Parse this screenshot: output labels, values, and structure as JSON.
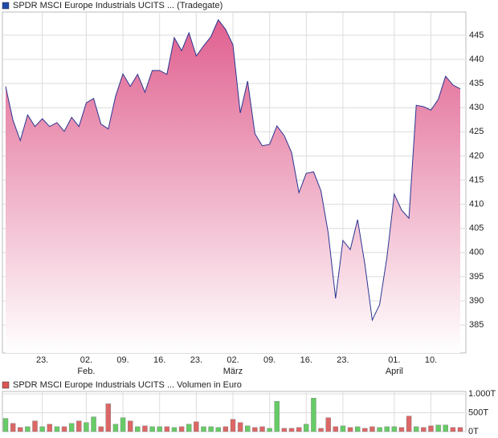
{
  "chart_data": [
    {
      "type": "area",
      "title": "SPDR MSCI Europe Industrials UCITS ... (Tradegate)",
      "legend_color": "#1f4aa8",
      "color": "#2b3590",
      "fill_color": "#e0608f",
      "categories": [
        null,
        null,
        null,
        null,
        null,
        "23.",
        null,
        null,
        null,
        null,
        null,
        "02.",
        null,
        null,
        null,
        null,
        "09.",
        null,
        null,
        null,
        null,
        "16.",
        null,
        null,
        null,
        null,
        "23.",
        null,
        null,
        null,
        null,
        "02.",
        null,
        null,
        null,
        null,
        "09.",
        null,
        null,
        null,
        null,
        "16.",
        null,
        null,
        null,
        null,
        "23.",
        null,
        null,
        null,
        null,
        null,
        null,
        "01.",
        null,
        null,
        null,
        null,
        "10.",
        null,
        null,
        null,
        null
      ],
      "months": [
        null,
        null,
        null,
        null,
        null,
        null,
        null,
        null,
        null,
        null,
        null,
        "Feb.",
        null,
        null,
        null,
        null,
        null,
        null,
        null,
        null,
        null,
        null,
        null,
        null,
        null,
        null,
        null,
        null,
        null,
        null,
        null,
        "März",
        null,
        null,
        null,
        null,
        null,
        null,
        null,
        null,
        null,
        null,
        null,
        null,
        null,
        null,
        null,
        null,
        null,
        null,
        null,
        null,
        null,
        "April",
        null,
        null,
        null,
        null,
        null,
        null,
        null,
        null,
        null
      ],
      "values": [
        434.4,
        427.4,
        423.2,
        428.5,
        426.1,
        427.7,
        426.1,
        426.9,
        425.1,
        428.0,
        426.1,
        431.0,
        431.9,
        426.6,
        425.6,
        432.4,
        437.0,
        434.4,
        436.9,
        433.2,
        437.7,
        437.7,
        436.9,
        444.5,
        441.8,
        445.5,
        440.7,
        442.8,
        444.7,
        448.2,
        446.2,
        443.0,
        428.9,
        435.5,
        424.6,
        422.1,
        422.4,
        426.2,
        424.2,
        420.7,
        412.4,
        416.4,
        416.7,
        412.8,
        404.0,
        390.5,
        402.5,
        400.6,
        406.8,
        397.5,
        386.0,
        389.2,
        399.0,
        412.1,
        408.8,
        407.1,
        430.5,
        430.2,
        429.5,
        431.7,
        436.5,
        434.7,
        433.9
      ],
      "ylim": [
        379.2,
        449.8
      ],
      "yticks": [
        385,
        390,
        395,
        400,
        405,
        410,
        415,
        420,
        425,
        430,
        435,
        440,
        445
      ],
      "grid": true
    },
    {
      "type": "bar",
      "title": "SPDR MSCI Europe Industrials UCITS ... Volumen in Euro",
      "legend_color": "#dd5555",
      "up_color": "#66cc66",
      "down_color": "#dd6666",
      "values": [
        350,
        217,
        109,
        130,
        282,
        130,
        195,
        130,
        130,
        217,
        282,
        239,
        391,
        130,
        738,
        195,
        369,
        282,
        130,
        152,
        130,
        130,
        130,
        109,
        130,
        195,
        260,
        130,
        130,
        109,
        130,
        326,
        239,
        152,
        109,
        130,
        87,
        803,
        87,
        87,
        109,
        195,
        890,
        87,
        369,
        130,
        152,
        109,
        130,
        87,
        130,
        109,
        130,
        130,
        109,
        412,
        130,
        109,
        152,
        174,
        174,
        109,
        109
      ],
      "ylim": [
        0,
        1065
      ],
      "yticks": [
        {
          "value": 0,
          "label": "0T"
        },
        {
          "value": 500,
          "label": "500T"
        },
        {
          "value": 1000,
          "label": "1.000T"
        }
      ],
      "grid": true
    }
  ]
}
